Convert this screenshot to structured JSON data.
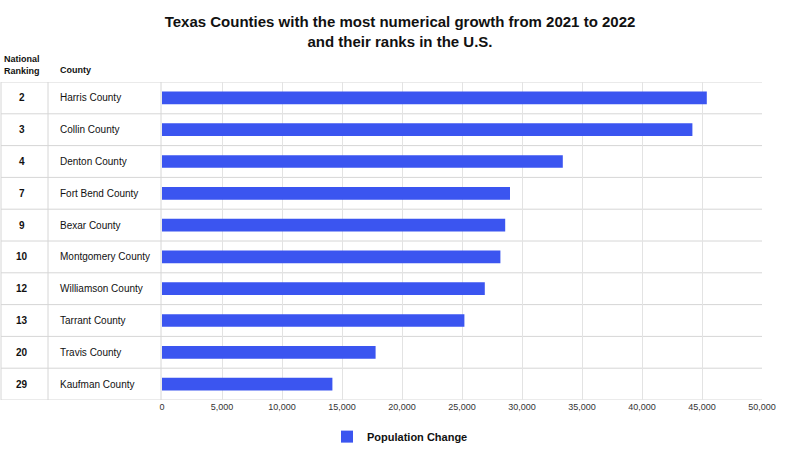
{
  "chart_data": {
    "type": "bar",
    "title": "Texas Counties with the most numerical growth from 2021 to 2022\nand their ranks in the U.S.",
    "orientation": "horizontal",
    "rank_header": "National\nRanking",
    "category_header": "County",
    "ranks": [
      2,
      3,
      4,
      7,
      9,
      10,
      12,
      13,
      20,
      29
    ],
    "categories": [
      "Harris County",
      "Collin County",
      "Denton County",
      "Fort Bend County",
      "Bexar County",
      "Montgomery County",
      "Williamson County",
      "Tarrant County",
      "Travis County",
      "Kaufman County"
    ],
    "series": [
      {
        "name": "Population Change",
        "color": "#3b55f0",
        "values": [
          45400,
          44200,
          33400,
          29000,
          28600,
          28200,
          26900,
          25200,
          17800,
          14200
        ]
      }
    ],
    "xlim": [
      0,
      50000
    ],
    "xticks": [
      0,
      {
        "value": 5000,
        "label": "5,000"
      },
      {
        "value": 10000,
        "label": "10,000"
      },
      {
        "value": 15000,
        "label": "15,000"
      },
      {
        "value": 20000,
        "label": "20,000"
      },
      {
        "value": 25000,
        "label": "25,000"
      },
      {
        "value": 30000,
        "label": "30,000"
      },
      {
        "value": 35000,
        "label": "35,000"
      },
      {
        "value": 40000,
        "label": "40,000"
      },
      {
        "value": 45000,
        "label": "45,000"
      },
      {
        "value": 50000,
        "label": "50,000"
      }
    ],
    "grid": true,
    "legend": "bottom"
  }
}
